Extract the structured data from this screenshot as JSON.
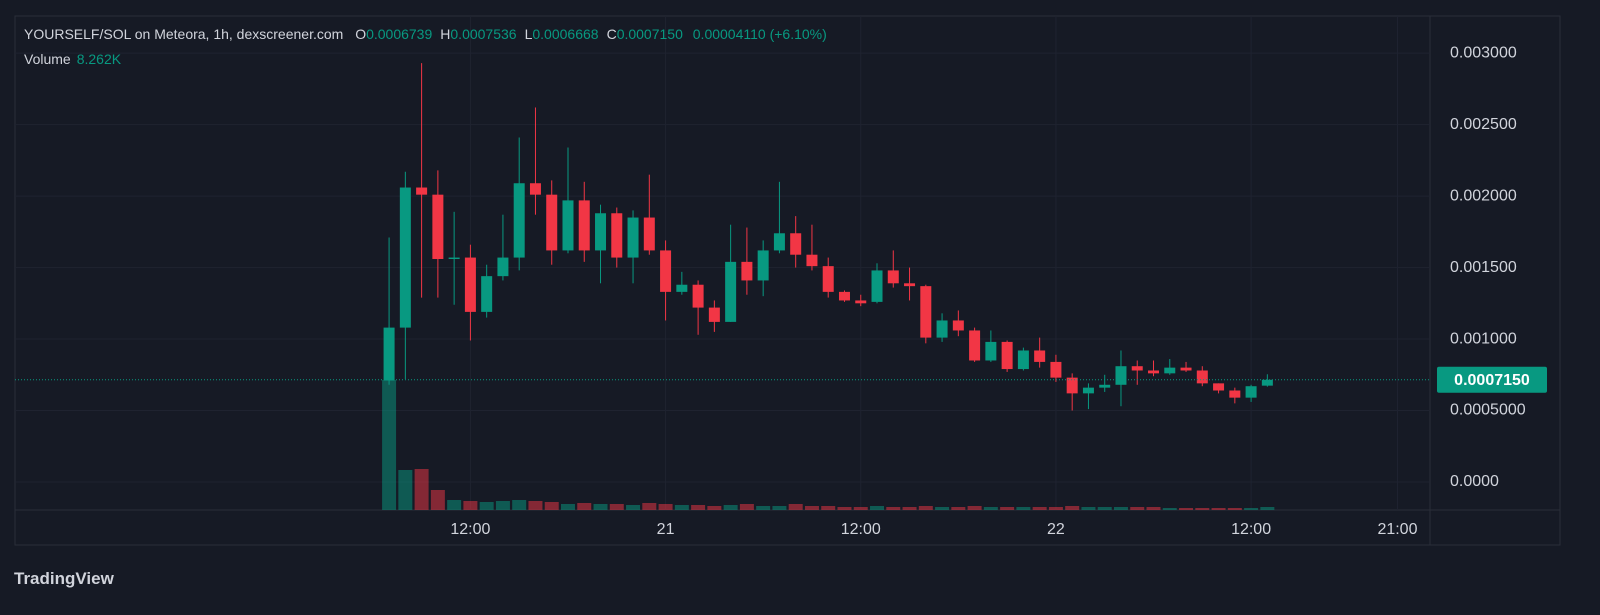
{
  "header": {
    "title": "YOURSELF/SOL on Meteora, 1h, dexscreener.com",
    "fields": [
      {
        "key": "O",
        "value": "0.0006739"
      },
      {
        "key": "H",
        "value": "0.0007536"
      },
      {
        "key": "L",
        "value": "0.0006668"
      },
      {
        "key": "C",
        "value": "0.0007150"
      }
    ],
    "change": "0.00004110 (+6.10%)",
    "volume_label": "Volume",
    "volume_value": "8.262K"
  },
  "footer": {
    "brand": "TradingView"
  },
  "chart_data": {
    "type": "candlestick",
    "x": [
      7,
      8,
      9,
      10,
      11,
      12,
      13,
      14,
      15,
      16,
      17,
      18,
      19,
      20,
      21,
      22,
      23,
      24,
      25,
      26,
      27,
      28,
      29,
      30,
      31,
      32,
      33,
      34,
      35,
      36,
      37,
      38,
      39,
      40,
      41,
      42,
      43,
      44,
      45,
      46,
      47,
      48,
      49,
      50,
      51,
      52,
      53,
      54,
      55,
      56,
      57,
      58,
      59,
      60,
      61
    ],
    "open": [
      0.00071,
      0.00108,
      0.00206,
      0.00201,
      0.00156,
      0.00157,
      0.00119,
      0.00144,
      0.00157,
      0.00209,
      0.00201,
      0.00162,
      0.00197,
      0.00162,
      0.00188,
      0.00157,
      0.00185,
      0.00162,
      0.00133,
      0.00138,
      0.00122,
      0.00112,
      0.00154,
      0.00141,
      0.00162,
      0.00174,
      0.00159,
      0.00151,
      0.00133,
      0.00127,
      0.00126,
      0.00148,
      0.00139,
      0.00137,
      0.00101,
      0.00113,
      0.00106,
      0.00085,
      0.00098,
      0.00079,
      0.00092,
      0.00084,
      0.00073,
      0.00062,
      0.00066,
      0.00068,
      0.00081,
      0.00078,
      0.00076,
      0.0008,
      0.00078,
      0.00069,
      0.00064,
      0.00059,
      0.0006739
    ],
    "high": [
      0.00171,
      0.00217,
      0.00293,
      0.00218,
      0.00189,
      0.00166,
      0.00152,
      0.00187,
      0.00241,
      0.00262,
      0.00211,
      0.00234,
      0.0021,
      0.00194,
      0.00192,
      0.0019,
      0.00215,
      0.00169,
      0.00147,
      0.00141,
      0.00127,
      0.0018,
      0.00178,
      0.00169,
      0.0021,
      0.00186,
      0.0018,
      0.00157,
      0.00134,
      0.00131,
      0.00153,
      0.00162,
      0.0015,
      0.00138,
      0.00118,
      0.0012,
      0.00108,
      0.00106,
      0.00099,
      0.00094,
      0.00101,
      0.00089,
      0.00076,
      0.00069,
      0.00075,
      0.00092,
      0.00085,
      0.00085,
      0.00086,
      0.00084,
      0.00081,
      0.00069,
      0.00066,
      0.00068,
      0.0007536
    ],
    "low": [
      0.00068,
      0.00072,
      0.00129,
      0.00129,
      0.00124,
      0.00099,
      0.00115,
      0.00141,
      0.00148,
      0.00187,
      0.00152,
      0.0016,
      0.00154,
      0.00139,
      0.0015,
      0.00139,
      0.00159,
      0.00113,
      0.00131,
      0.00103,
      0.00105,
      0.00112,
      0.00131,
      0.0013,
      0.0016,
      0.0015,
      0.00148,
      0.00129,
      0.00126,
      0.00123,
      0.00125,
      0.00136,
      0.00127,
      0.00097,
      0.00098,
      0.00102,
      0.00084,
      0.00084,
      0.00077,
      0.00078,
      0.0008,
      0.0007,
      0.0005,
      0.00051,
      0.00063,
      0.00053,
      0.00068,
      0.00074,
      0.00075,
      0.00077,
      0.00067,
      0.00062,
      0.00055,
      0.00056,
      0.0006668
    ],
    "close": [
      0.00108,
      0.00206,
      0.00201,
      0.00156,
      0.00157,
      0.00119,
      0.00144,
      0.00157,
      0.00209,
      0.00201,
      0.00162,
      0.00197,
      0.00162,
      0.00188,
      0.00157,
      0.00185,
      0.00162,
      0.00133,
      0.00138,
      0.00122,
      0.00112,
      0.00154,
      0.00141,
      0.00162,
      0.00174,
      0.00159,
      0.00151,
      0.00133,
      0.00127,
      0.00125,
      0.00148,
      0.00139,
      0.00137,
      0.00101,
      0.00113,
      0.00106,
      0.00085,
      0.00098,
      0.00079,
      0.00092,
      0.00084,
      0.00073,
      0.00062,
      0.00066,
      0.00068,
      0.00081,
      0.00078,
      0.00076,
      0.0008,
      0.00078,
      0.00069,
      0.00064,
      0.00059,
      0.00067,
      0.000715
    ],
    "volume": [
      357500,
      110000,
      112750,
      55000,
      27500,
      24750,
      22000,
      24750,
      27500,
      24750,
      22000,
      16500,
      19250,
      16500,
      16500,
      13750,
      19250,
      16500,
      13750,
      13750,
      11000,
      13750,
      16500,
      11000,
      11000,
      16500,
      11000,
      11000,
      8250,
      8250,
      11000,
      8250,
      8250,
      11000,
      8250,
      8250,
      11000,
      8250,
      8250,
      8250,
      8250,
      8250,
      11000,
      8250,
      8250,
      8250,
      8250,
      8250,
      5500,
      5500,
      5500,
      5500,
      5500,
      5500,
      8262
    ],
    "up_color": "#089981",
    "down_color": "#f23645",
    "xlim": [
      -16,
      71
    ],
    "xticks": [
      {
        "value": 12,
        "label": "12:00"
      },
      {
        "value": 24,
        "label": "21"
      },
      {
        "value": 36,
        "label": "12:00"
      },
      {
        "value": 48,
        "label": "22"
      },
      {
        "value": 60,
        "label": "12:00"
      },
      {
        "value": 69,
        "label": "21:00"
      }
    ],
    "ylim": [
      -0.000196,
      0.00326
    ],
    "yticks": [
      {
        "value": 0,
        "label": "0.0000"
      },
      {
        "value": 0.0005,
        "label": "0.0005000"
      },
      {
        "value": 0.001,
        "label": "0.001000"
      },
      {
        "value": 0.0015,
        "label": "0.001500"
      },
      {
        "value": 0.002,
        "label": "0.002000"
      },
      {
        "value": 0.0025,
        "label": "0.002500"
      },
      {
        "value": 0.003,
        "label": "0.003000"
      }
    ],
    "last_price": {
      "value": 0.000715,
      "label": "0.0007150"
    },
    "grid": true
  }
}
